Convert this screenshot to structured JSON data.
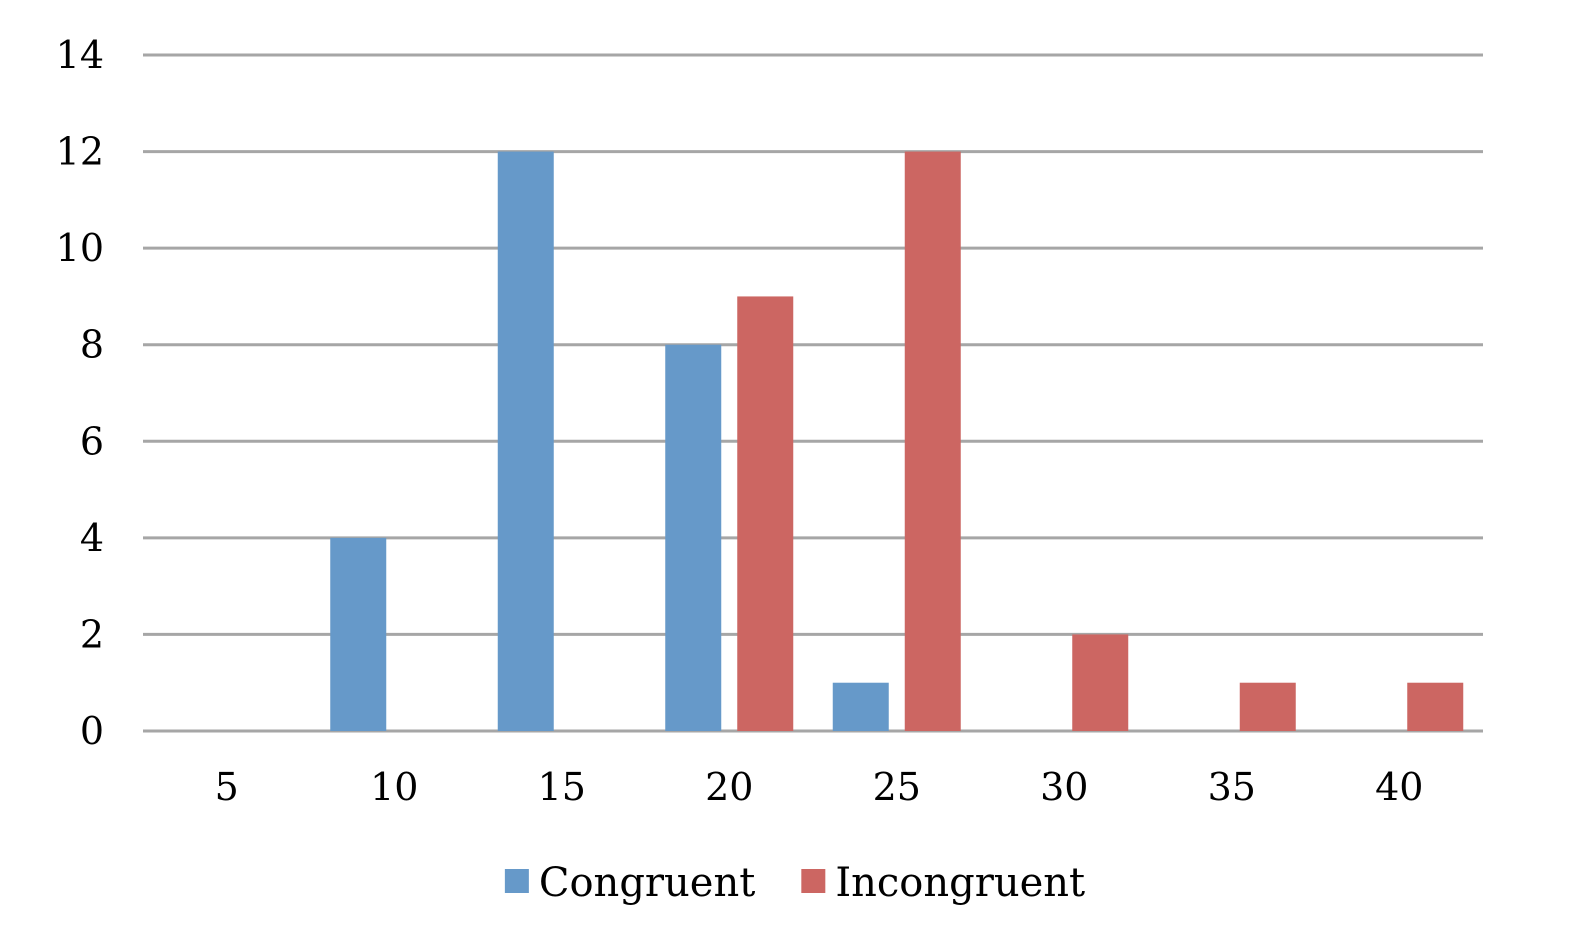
{
  "chart_data": {
    "type": "bar",
    "title": "",
    "xlabel": "",
    "ylabel": "",
    "categories": [
      "5",
      "10",
      "15",
      "20",
      "25",
      "30",
      "35",
      "40"
    ],
    "series": [
      {
        "name": "Congruent",
        "color": "#6699c9",
        "values": [
          0,
          4,
          12,
          8,
          1,
          0,
          0,
          0
        ]
      },
      {
        "name": "Incongruent",
        "color": "#cc6662",
        "values": [
          0,
          0,
          0,
          9,
          12,
          2,
          1,
          1
        ]
      }
    ],
    "ylim": [
      0,
      14
    ],
    "yticks": [
      0,
      2,
      4,
      6,
      8,
      10,
      12,
      14
    ],
    "grid": true,
    "gridline_color": "#a6a6a6",
    "legend_position": "bottom"
  }
}
